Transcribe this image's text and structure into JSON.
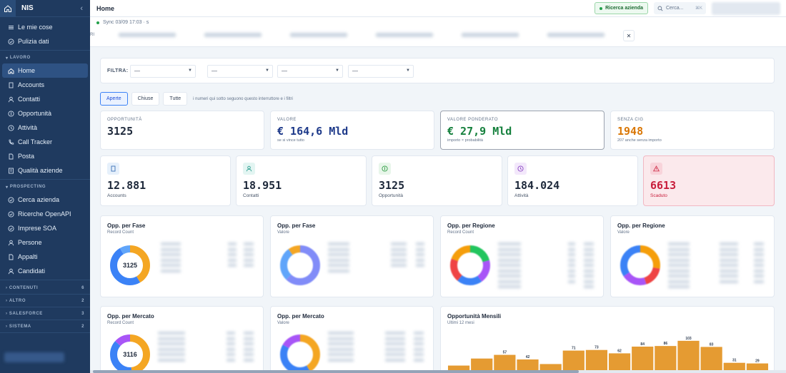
{
  "app": {
    "name": "NIS"
  },
  "sidebar": {
    "top_items": [
      {
        "label": "Le mie cose",
        "icon": "stack-icon"
      },
      {
        "label": "Pulizia dati",
        "icon": "check-circle-icon"
      }
    ],
    "sections": [
      {
        "label": "LAVORO",
        "items": [
          {
            "label": "Home",
            "icon": "home-icon",
            "active": true
          },
          {
            "label": "Accounts",
            "icon": "building-icon"
          },
          {
            "label": "Contatti",
            "icon": "user-icon"
          },
          {
            "label": "Opportunità",
            "icon": "dollar-icon"
          },
          {
            "label": "Attività",
            "icon": "clock-icon"
          },
          {
            "label": "Call Tracker",
            "icon": "phone-icon"
          },
          {
            "label": "Posta",
            "icon": "document-icon"
          },
          {
            "label": "Qualità aziende",
            "icon": "list-icon"
          }
        ]
      },
      {
        "label": "PROSPECTING",
        "items": [
          {
            "label": "Cerca azienda",
            "icon": "check-circle-icon"
          },
          {
            "label": "Ricerche OpenAPI",
            "icon": "check-circle-icon"
          },
          {
            "label": "Imprese SOA",
            "icon": "check-circle-icon"
          },
          {
            "label": "Persone",
            "icon": "user-icon"
          },
          {
            "label": "Appalti",
            "icon": "document-icon"
          },
          {
            "label": "Candidati",
            "icon": "user-icon"
          }
        ]
      }
    ],
    "collapsed_sections": [
      {
        "label": "CONTENUTI",
        "count": "6"
      },
      {
        "label": "ALTRO",
        "count": "2"
      },
      {
        "label": "SALESFORCE",
        "count": "3"
      },
      {
        "label": "SISTEMA",
        "count": "2"
      }
    ]
  },
  "header": {
    "title": "Home",
    "action_button": "Ricerca azienda",
    "search_placeholder": "Cerca...",
    "search_shortcut": "⌘K"
  },
  "sync": {
    "label": "Sync 03/09 17:03 · s",
    "cut_label": "RI"
  },
  "filters": {
    "label": "FILTRA:",
    "selects": [
      "—",
      "—",
      "—",
      "—"
    ]
  },
  "toggles": {
    "options": [
      "Aperte",
      "Chiuse",
      "Tutte"
    ],
    "active": "Aperte",
    "hint": "i numeri qui sotto seguono questo interruttore e i filtri"
  },
  "kpis": [
    {
      "label": "OPPORTUNITÀ",
      "value": "3125",
      "sub": "",
      "color": "#1e293b"
    },
    {
      "label": "VALORE",
      "value": "€ 164,6 Mld",
      "sub": "se si vince tutto",
      "color": "#1e3a8a"
    },
    {
      "label": "VALORE PONDERATO",
      "value": "€ 27,9 Mld",
      "sub": "importo × probabilità",
      "color": "#15803d"
    },
    {
      "label": "SENZA CIG",
      "value": "1948",
      "sub": "207 anche senza importo",
      "color": "#d97706"
    }
  ],
  "stats": [
    {
      "value": "12.881",
      "label": "Accounts",
      "icon": "building-icon",
      "icon_bg": "#e6f0fb",
      "icon_color": "#3b6fb6"
    },
    {
      "value": "18.951",
      "label": "Contatti",
      "icon": "user-icon",
      "icon_bg": "#e3f5f2",
      "icon_color": "#2a9d8f"
    },
    {
      "value": "3125",
      "label": "Opportunità",
      "icon": "dollar-icon",
      "icon_bg": "#e8f6ea",
      "icon_color": "#2f9e44"
    },
    {
      "value": "184.024",
      "label": "Attività",
      "icon": "clock-icon",
      "icon_bg": "#f3e8fb",
      "icon_color": "#8b47c2"
    },
    {
      "value": "6613",
      "label": "Scaduto",
      "icon": "warning-icon",
      "icon_bg": "#f8d3da",
      "icon_color": "#d0354f",
      "alert": true
    }
  ],
  "charts": [
    {
      "title": "Opp. per Fase",
      "sub": "Record Count",
      "center": "3125"
    },
    {
      "title": "Opp. per Fase",
      "sub": "Valore",
      "center": ""
    },
    {
      "title": "Opp. per Regione",
      "sub": "Record Count",
      "center": ""
    },
    {
      "title": "Opp. per Regione",
      "sub": "Valore",
      "center": ""
    },
    {
      "title": "Opp. per Mercato",
      "sub": "Record Count",
      "center": "3116"
    },
    {
      "title": "Opp. per Mercato",
      "sub": "Valore",
      "center": ""
    }
  ],
  "monthly": {
    "title": "Opportunità Mensili",
    "sub": "Ultimi 12 mesi",
    "chart_data": {
      "type": "bar",
      "categories": [
        "",
        "",
        "",
        "",
        "",
        "",
        "",
        "",
        "",
        "",
        "",
        "",
        "",
        ""
      ],
      "values": [
        22,
        45,
        57,
        42,
        27,
        71,
        73,
        62,
        84,
        86,
        103,
        83,
        31,
        29
      ],
      "data_labels": [
        "",
        "",
        "57",
        "42",
        "",
        "71",
        "73",
        "62",
        "84",
        "86",
        "103",
        "83",
        "31",
        "29"
      ],
      "ylim": [
        0,
        140
      ],
      "bar_color": "#e59b32"
    }
  }
}
